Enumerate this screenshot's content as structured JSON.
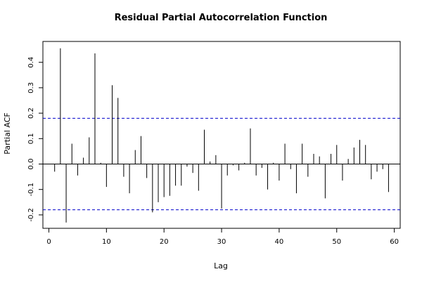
{
  "chart_data": {
    "type": "bar",
    "title": "Residual Partial Autocorrelation Function",
    "xlabel": "Lag",
    "ylabel": "Partial ACF",
    "xlim": [
      0,
      60
    ],
    "ylim": [
      -0.25,
      0.45
    ],
    "x_ticks": [
      0,
      10,
      20,
      30,
      40,
      50,
      60
    ],
    "y_ticks": [
      -0.2,
      -0.1,
      0.0,
      0.1,
      0.2,
      0.3,
      0.4
    ],
    "x_tick_labels": [
      "0",
      "10",
      "20",
      "30",
      "40",
      "50",
      "60"
    ],
    "y_tick_labels": [
      "-0.2",
      "-0.1",
      "0.0",
      "0.1",
      "0.2",
      "0.3",
      "0.4"
    ],
    "confidence_bounds": [
      0.18,
      -0.18
    ],
    "confidence_color": "#0000cc",
    "grid": false,
    "lags": [
      1,
      2,
      3,
      4,
      5,
      6,
      7,
      8,
      9,
      10,
      11,
      12,
      13,
      14,
      15,
      16,
      17,
      18,
      19,
      20,
      21,
      22,
      23,
      24,
      25,
      26,
      27,
      28,
      29,
      30,
      31,
      32,
      33,
      34,
      35,
      36,
      37,
      38,
      39,
      40,
      41,
      42,
      43,
      44,
      45,
      46,
      47,
      48,
      49,
      50,
      51,
      52,
      53,
      54,
      55,
      56,
      57,
      58,
      59
    ],
    "values": [
      -0.03,
      0.455,
      -0.23,
      0.08,
      -0.045,
      0.025,
      0.105,
      0.435,
      0.005,
      -0.09,
      0.31,
      0.26,
      -0.05,
      -0.115,
      0.055,
      0.11,
      -0.055,
      -0.19,
      -0.15,
      -0.13,
      -0.125,
      -0.085,
      -0.085,
      -0.01,
      -0.035,
      -0.105,
      0.135,
      0.01,
      0.035,
      -0.175,
      -0.045,
      -0.005,
      -0.025,
      0.005,
      0.14,
      -0.045,
      -0.015,
      -0.1,
      0.005,
      -0.065,
      0.08,
      -0.02,
      -0.115,
      0.08,
      -0.05,
      0.04,
      0.03,
      -0.135,
      0.04,
      0.075,
      -0.065,
      0.02,
      0.065,
      0.095,
      0.075,
      -0.06,
      -0.03,
      -0.02,
      -0.11
    ]
  }
}
